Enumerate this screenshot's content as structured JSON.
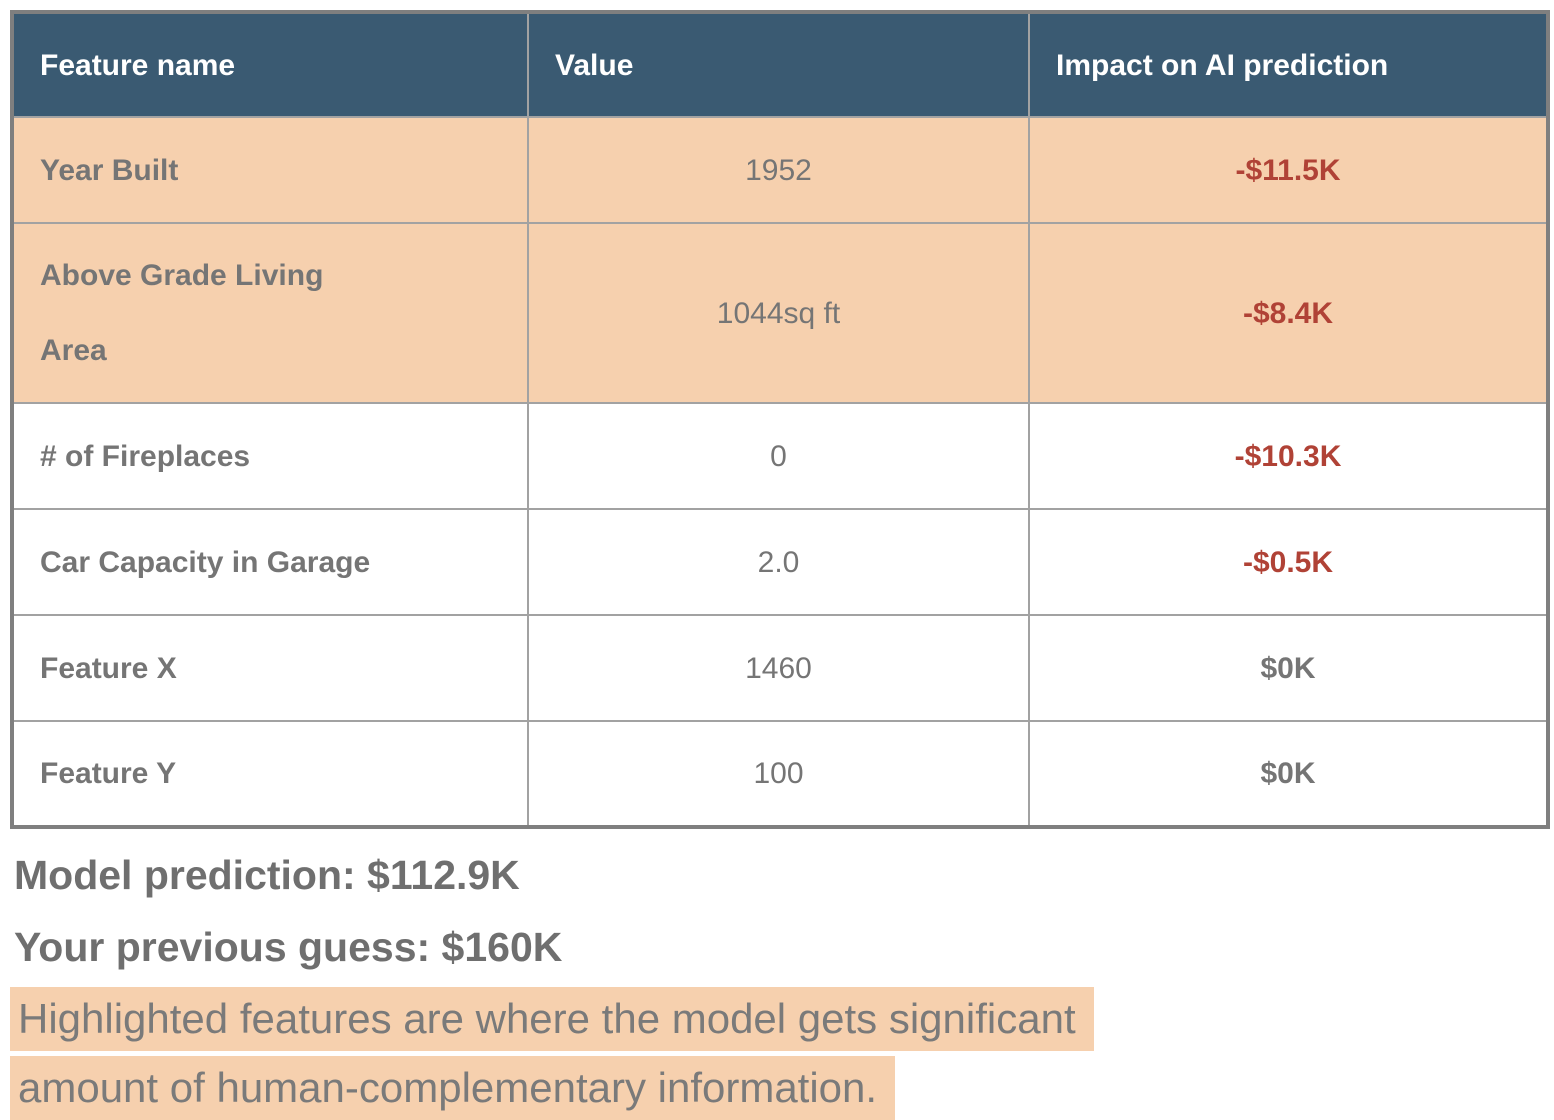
{
  "colors": {
    "header_bg": "#3a5a72",
    "highlight_peach": "#f6d0ae",
    "negative_red": "#b04236",
    "text_gray": "#757575",
    "border_gray": "#a2a2a2"
  },
  "table": {
    "headers": [
      "Feature name",
      "Value",
      "Impact on AI prediction"
    ],
    "rows": [
      {
        "feature": "Year Built",
        "value": "1952",
        "impact": "-$11.5K",
        "highlighted": true,
        "impact_negative": true
      },
      {
        "feature": "Above Grade Living Area",
        "value": "1044sq ft",
        "impact": "-$8.4K",
        "highlighted": true,
        "impact_negative": true
      },
      {
        "feature": "# of Fireplaces",
        "value": "0",
        "impact": "-$10.3K",
        "highlighted": false,
        "impact_negative": true
      },
      {
        "feature": "Car Capacity in Garage",
        "value": "2.0",
        "impact": "-$0.5K",
        "highlighted": false,
        "impact_negative": true
      },
      {
        "feature": "Feature X",
        "value": "1460",
        "impact": "$0K",
        "highlighted": false,
        "impact_negative": false
      },
      {
        "feature": "Feature Y",
        "value": "100",
        "impact": "$0K",
        "highlighted": false,
        "impact_negative": false
      }
    ]
  },
  "summary": {
    "model_prediction": "Model prediction: $112.9K",
    "previous_guess": "Your previous guess: $160K",
    "note_lines": [
      "Highlighted features are where the model gets significant",
      "amount of human-complementary information."
    ]
  }
}
